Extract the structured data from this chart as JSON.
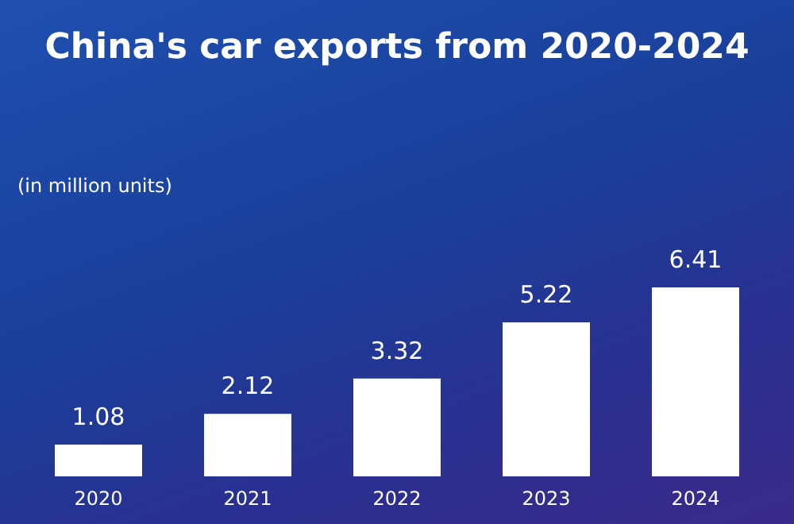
{
  "chart_data": {
    "type": "bar",
    "title": "China's car exports from 2020-2024",
    "subtitle": "(in million units)",
    "categories": [
      "2020",
      "2021",
      "2022",
      "2023",
      "2024"
    ],
    "values": [
      1.08,
      2.12,
      3.32,
      5.22,
      6.41
    ],
    "color": "#ffffff",
    "data_labels": true
  }
}
